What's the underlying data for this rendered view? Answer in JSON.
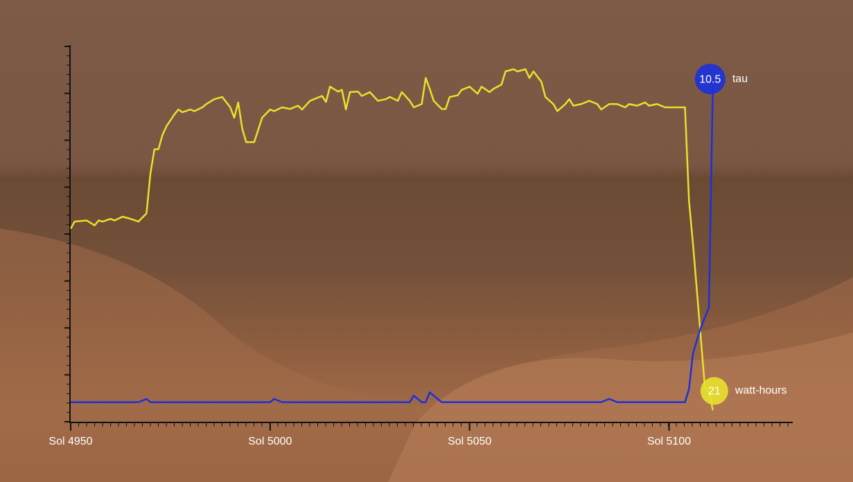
{
  "chart_data": {
    "type": "line",
    "x": [
      4950,
      4951,
      4954,
      4956,
      4957,
      4958,
      4960,
      4961,
      4963,
      4965,
      4967,
      4969,
      4970,
      4971,
      4972,
      4973,
      4974,
      4976,
      4977,
      4978,
      4980,
      4981,
      4983,
      4984,
      4986,
      4988,
      4990,
      4991,
      4992,
      4993,
      4994,
      4996,
      4998,
      5000,
      5001,
      5003,
      5005,
      5007,
      5008,
      5010,
      5013,
      5014,
      5015,
      5017,
      5018,
      5019,
      5020,
      5022,
      5023,
      5025,
      5027,
      5029,
      5030,
      5032,
      5033,
      5035,
      5036,
      5038,
      5039,
      5040,
      5041,
      5043,
      5044,
      5045,
      5047,
      5048,
      5050,
      5052,
      5053,
      5055,
      5056,
      5058,
      5059,
      5061,
      5062,
      5064,
      5065,
      5066,
      5068,
      5069,
      5071,
      5072,
      5074,
      5075,
      5076,
      5078,
      5080,
      5082,
      5083,
      5085,
      5087,
      5089,
      5090,
      5092,
      5094,
      5095,
      5097,
      5099,
      5102,
      5104,
      5105,
      5106,
      5108,
      5109,
      5110,
      5111
    ],
    "series": [
      {
        "name": "watt-hours",
        "color": "#e8e22c",
        "values": [
          355,
          368,
          370,
          361,
          370,
          368,
          373,
          370,
          377,
          373,
          368,
          383,
          457,
          501,
          501,
          527,
          543,
          565,
          574,
          569,
          574,
          571,
          578,
          584,
          593,
          597,
          578,
          559,
          587,
          539,
          514,
          514,
          559,
          574,
          571,
          578,
          575,
          581,
          574,
          590,
          599,
          588,
          616,
          607,
          610,
          574,
          606,
          607,
          599,
          606,
          590,
          593,
          597,
          590,
          606,
          590,
          578,
          584,
          632,
          612,
          590,
          575,
          575,
          597,
          600,
          610,
          616,
          603,
          616,
          606,
          612,
          620,
          644,
          648,
          644,
          648,
          632,
          644,
          625,
          597,
          584,
          571,
          584,
          593,
          581,
          584,
          590,
          584,
          574,
          584,
          584,
          578,
          584,
          581,
          587,
          581,
          584,
          578,
          578,
          578,
          406,
          327,
          151,
          62,
          56,
          21
        ]
      },
      {
        "name": "tau",
        "color": "#1b30dc",
        "axis": "y2",
        "values": [
          0.6,
          0.6,
          0.6,
          0.6,
          0.6,
          0.6,
          0.6,
          0.6,
          0.6,
          0.6,
          0.6,
          0.7,
          0.6,
          0.6,
          0.6,
          0.6,
          0.6,
          0.6,
          0.6,
          0.6,
          0.6,
          0.6,
          0.6,
          0.6,
          0.6,
          0.6,
          0.6,
          0.6,
          0.6,
          0.6,
          0.6,
          0.6,
          0.6,
          0.6,
          0.7,
          0.6,
          0.6,
          0.6,
          0.6,
          0.6,
          0.6,
          0.6,
          0.6,
          0.6,
          0.6,
          0.6,
          0.6,
          0.6,
          0.6,
          0.6,
          0.6,
          0.6,
          0.6,
          0.6,
          0.6,
          0.6,
          0.8,
          0.6,
          0.6,
          0.9,
          0.8,
          0.6,
          0.6,
          0.6,
          0.6,
          0.6,
          0.6,
          0.6,
          0.6,
          0.6,
          0.6,
          0.6,
          0.6,
          0.6,
          0.6,
          0.6,
          0.6,
          0.6,
          0.6,
          0.6,
          0.6,
          0.6,
          0.6,
          0.6,
          0.6,
          0.6,
          0.6,
          0.6,
          0.6,
          0.7,
          0.6,
          0.6,
          0.6,
          0.6,
          0.6,
          0.6,
          0.6,
          0.6,
          0.6,
          0.6,
          1.0,
          2.1,
          2.9,
          3.2,
          3.5,
          10.5
        ]
      }
    ],
    "xlim": [
      4950,
      5131
    ],
    "xticks": [
      {
        "value": 4950,
        "label": "Sol 4950"
      },
      {
        "value": 5000,
        "label": "Sol 5000"
      },
      {
        "value": 5050,
        "label": "Sol 5050"
      },
      {
        "value": 5100,
        "label": "Sol 5100"
      }
    ],
    "ylim": [
      0,
      690
    ],
    "y2lim": [
      0,
      11.5
    ]
  }
}
